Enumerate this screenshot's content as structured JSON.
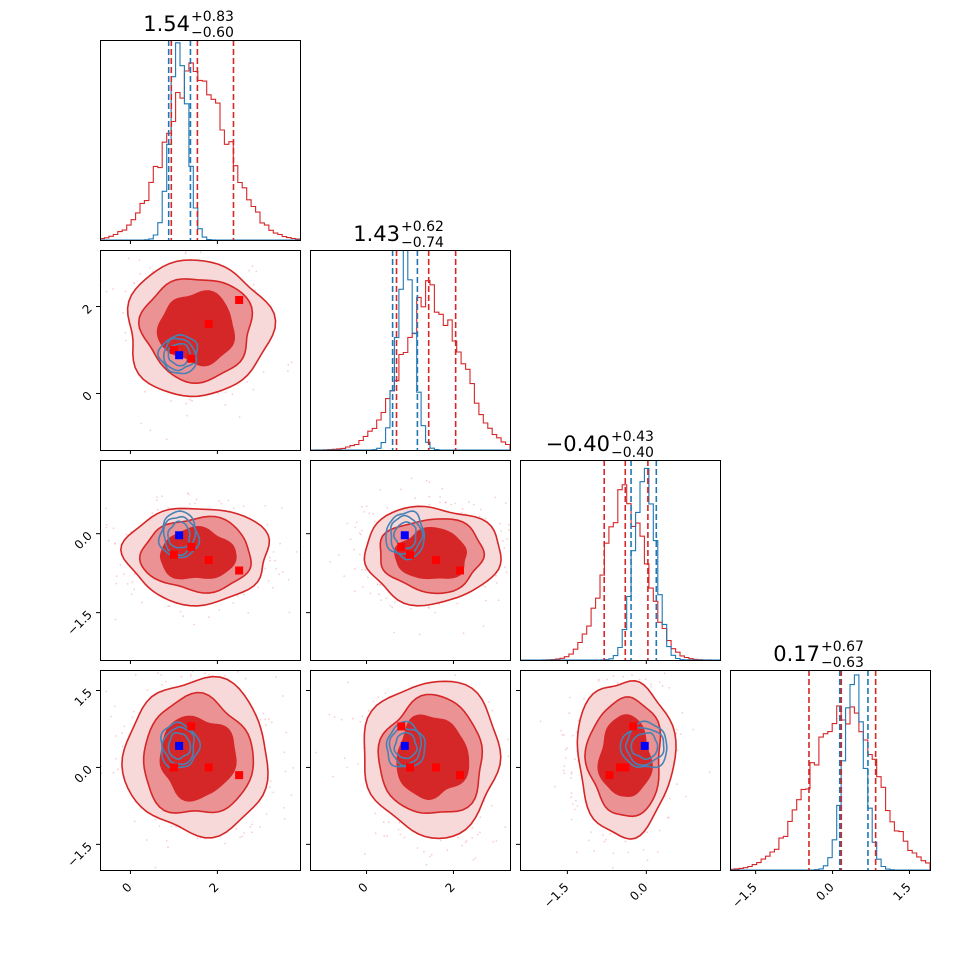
{
  "chart_data": {
    "type": "corner",
    "colors": {
      "series_red": "#d62728",
      "series_blue": "#1f77b4",
      "contour_blue": "#4682b4",
      "marker_red": "#ff0000",
      "marker_blue": "#0000ff",
      "fill_dark": "#d62728",
      "fill_mid": "#eb9294",
      "fill_light": "#f7d9d9",
      "scatter_pink": "#f5b8c0"
    },
    "parameters": [
      {
        "title": {
          "median": "1.54",
          "plus": "+0.83",
          "minus": "−0.60"
        },
        "range": [
          -0.7,
          3.9
        ],
        "ticks": [
          0,
          2
        ],
        "tick_labels": [
          "0",
          "2"
        ],
        "red_hist": {
          "center": 1.54,
          "sigma": 0.72,
          "height": 0.84
        },
        "blue_hist": {
          "center": 1.12,
          "sigma": 0.2,
          "height": 1.0
        },
        "red_quantiles": [
          0.94,
          1.54,
          2.37
        ],
        "blue_quantiles": [
          0.88,
          1.38
        ]
      },
      {
        "title": {
          "median": "1.43",
          "plus": "+0.62",
          "minus": "−0.74"
        },
        "range": [
          -1.3,
          3.3
        ],
        "ticks": [
          0,
          2
        ],
        "tick_labels": [
          "0",
          "2"
        ],
        "red_hist": {
          "center": 1.5,
          "sigma": 0.68,
          "height": 0.8
        },
        "blue_hist": {
          "center": 0.9,
          "sigma": 0.2,
          "height": 1.0
        },
        "red_quantiles": [
          0.69,
          1.43,
          2.05
        ],
        "blue_quantiles": [
          0.6,
          1.17
        ]
      },
      {
        "title": {
          "median": "−0.40",
          "plus": "+0.43",
          "minus": "−0.40"
        },
        "range": [
          -2.4,
          1.4
        ],
        "ticks": [
          -1.5,
          0.0
        ],
        "tick_labels": [
          "−1.5",
          "0.0"
        ],
        "red_hist": {
          "center": -0.4,
          "sigma": 0.4,
          "height": 0.83
        },
        "blue_hist": {
          "center": -0.03,
          "sigma": 0.2,
          "height": 1.0
        },
        "red_quantiles": [
          -0.8,
          -0.4,
          0.03
        ],
        "blue_quantiles": [
          -0.29,
          0.19
        ]
      },
      {
        "title": {
          "median": "0.17",
          "plus": "+0.67",
          "minus": "−0.63"
        },
        "range": [
          -2.0,
          1.9
        ],
        "ticks": [
          -1.5,
          0.0,
          1.5
        ],
        "tick_labels": [
          "−1.5",
          "0.0",
          "1.5"
        ],
        "red_hist": {
          "center": 0.2,
          "sigma": 0.66,
          "height": 0.8
        },
        "blue_hist": {
          "center": 0.42,
          "sigma": 0.2,
          "height": 1.0
        },
        "red_quantiles": [
          -0.46,
          0.17,
          0.84
        ],
        "blue_quantiles": [
          0.14,
          0.69
        ]
      }
    ],
    "truth_points_red": [
      [
        1.0,
        1.0,
        -0.4,
        0.0
      ],
      [
        1.4,
        0.8,
        -0.25,
        0.8
      ],
      [
        1.8,
        1.6,
        -0.5,
        0.0
      ],
      [
        2.5,
        2.15,
        -0.7,
        -0.15
      ]
    ],
    "truth_point_blue": [
      1.12,
      0.88,
      -0.03,
      0.42
    ]
  }
}
